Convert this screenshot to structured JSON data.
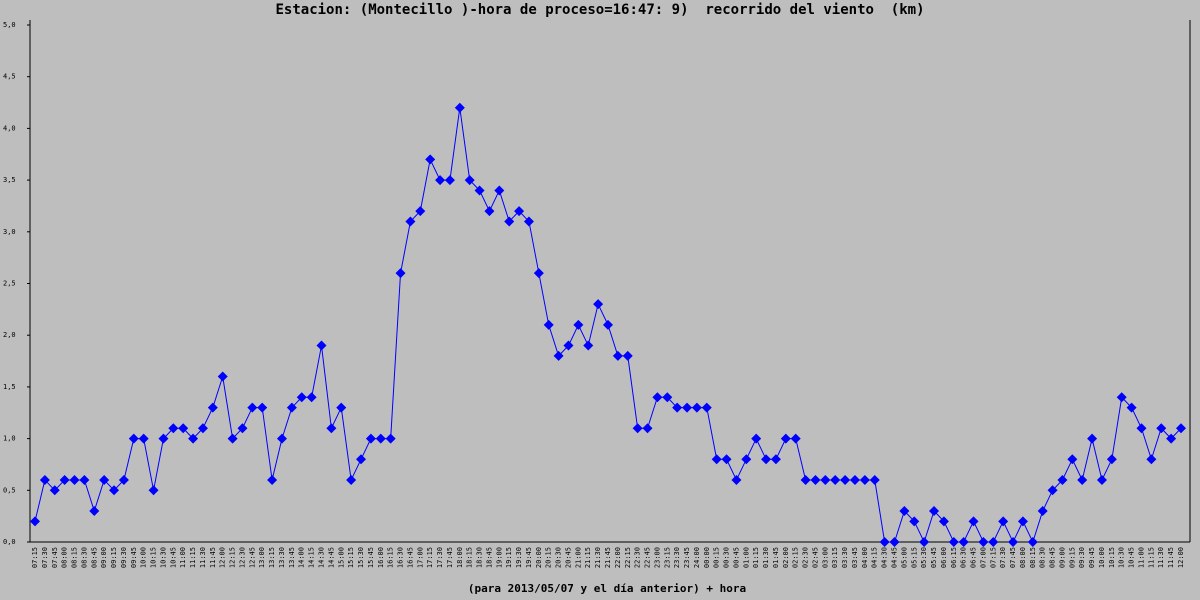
{
  "chart_data": {
    "type": "line",
    "title": "Estacion: (Montecillo )-hora de proceso=16:47: 9)  recorrido del viento  (km)",
    "xlabel": "(para 2013/05/07 y el día anterior) + hora",
    "color": "#0000ff",
    "categories": [
      "07:15",
      "07:30",
      "07:45",
      "08:00",
      "08:15",
      "08:30",
      "08:45",
      "09:00",
      "09:15",
      "09:30",
      "09:45",
      "10:00",
      "10:15",
      "10:30",
      "10:45",
      "11:00",
      "11:15",
      "11:30",
      "11:45",
      "12:00",
      "12:15",
      "12:30",
      "12:45",
      "13:00",
      "13:15",
      "13:30",
      "13:45",
      "14:00",
      "14:15",
      "14:30",
      "14:45",
      "15:00",
      "15:15",
      "15:30",
      "15:45",
      "16:00",
      "16:15",
      "16:30",
      "16:45",
      "17:00",
      "17:15",
      "17:30",
      "17:45",
      "18:00",
      "18:15",
      "18:30",
      "18:45",
      "19:00",
      "19:15",
      "19:30",
      "19:45",
      "20:00",
      "20:15",
      "20:30",
      "20:45",
      "21:00",
      "21:15",
      "21:30",
      "21:45",
      "22:00",
      "22:15",
      "22:30",
      "22:45",
      "23:00",
      "23:15",
      "23:30",
      "23:45",
      "24:00",
      "00:00",
      "00:15",
      "00:30",
      "00:45",
      "01:00",
      "01:15",
      "01:30",
      "01:45",
      "02:00",
      "02:15",
      "02:30",
      "02:45",
      "03:00",
      "03:15",
      "03:30",
      "03:45",
      "04:00",
      "04:15",
      "04:30",
      "04:45",
      "05:00",
      "05:15",
      "05:30",
      "05:45",
      "06:00",
      "06:15",
      "06:30",
      "06:45",
      "07:00",
      "07:15",
      "07:30",
      "07:45",
      "08:00",
      "08:15",
      "08:30",
      "08:45",
      "09:00",
      "09:15",
      "09:30",
      "09:45",
      "10:00",
      "10:15",
      "10:30",
      "10:45",
      "11:00",
      "11:15",
      "11:30",
      "11:45",
      "12:00"
    ],
    "values": [
      0.2,
      0.6,
      0.5,
      0.6,
      0.6,
      0.6,
      0.3,
      0.6,
      0.5,
      0.6,
      1.0,
      1.0,
      0.5,
      1.0,
      1.1,
      1.1,
      1.0,
      1.1,
      1.3,
      1.6,
      1.0,
      1.1,
      1.3,
      1.3,
      0.6,
      1.0,
      1.3,
      1.4,
      1.4,
      1.9,
      1.1,
      1.3,
      0.6,
      0.8,
      1.0,
      1.0,
      1.0,
      2.6,
      3.1,
      3.2,
      3.7,
      3.5,
      3.5,
      4.2,
      3.5,
      3.4,
      3.2,
      3.4,
      3.1,
      3.2,
      3.1,
      2.6,
      2.1,
      1.8,
      1.9,
      2.1,
      1.9,
      2.3,
      2.1,
      1.8,
      1.8,
      1.1,
      1.1,
      1.4,
      1.4,
      1.3,
      1.3,
      1.3,
      1.3,
      0.8,
      0.8,
      0.6,
      0.8,
      1.0,
      0.8,
      0.8,
      1.0,
      1.0,
      0.6,
      0.6,
      0.6,
      0.6,
      0.6,
      0.6,
      0.6,
      0.6,
      0.0,
      0.0,
      0.3,
      0.2,
      0.0,
      0.3,
      0.2,
      0.0,
      0.0,
      0.2,
      0.0,
      0.0,
      0.2,
      0.0,
      0.2,
      0.0,
      0.3,
      0.5,
      0.6,
      0.8,
      0.6,
      1.0,
      0.6,
      0.8,
      1.4,
      1.3,
      1.1,
      0.8,
      1.1,
      1.0,
      1.1
    ],
    "ylim": [
      0,
      5
    ],
    "yticks": [
      {
        "value": 0,
        "label": "0,0"
      },
      {
        "value": 0.5,
        "label": "0,5"
      },
      {
        "value": 1,
        "label": "1,0"
      },
      {
        "value": 1.5,
        "label": "1,5"
      },
      {
        "value": 2,
        "label": "2,0"
      },
      {
        "value": 2.5,
        "label": "2,5"
      },
      {
        "value": 3,
        "label": "3,0"
      },
      {
        "value": 3.5,
        "label": "3,5"
      },
      {
        "value": 4,
        "label": "4,0"
      },
      {
        "value": 4.5,
        "label": "4,5"
      },
      {
        "value": 5,
        "label": "5,0"
      }
    ]
  }
}
